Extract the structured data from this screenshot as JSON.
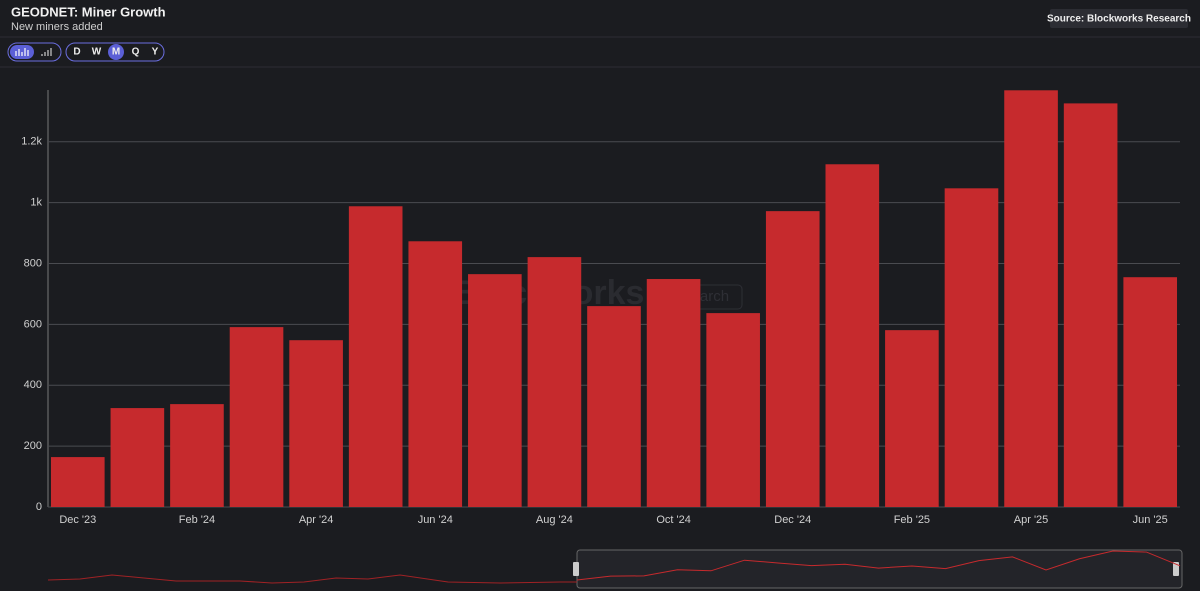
{
  "chart_data": {
    "type": "bar",
    "title": "GEODNET: Miner Growth",
    "subtitle": "New miners added",
    "source": "Source: Blockworks Research",
    "watermark": "Blockworks",
    "watermark_badge": "Research",
    "intervals": [
      "D",
      "W",
      "M",
      "Q",
      "Y"
    ],
    "active_interval": "M",
    "categories": [
      "Dec '23",
      null,
      "Feb '24",
      null,
      "Apr '24",
      null,
      "Jun '24",
      null,
      "Aug '24",
      null,
      "Oct '24",
      null,
      "Dec '24",
      null,
      "Feb '25",
      null,
      "Apr '25",
      null,
      "Jun '25"
    ],
    "values": [
      164,
      325,
      338,
      591,
      548,
      988,
      873,
      765,
      821,
      660,
      749,
      637,
      972,
      1126,
      581,
      1047,
      1369,
      1326,
      755
    ],
    "color": "#c62a2d",
    "ylim": [
      0,
      1370
    ],
    "yticks": [
      0,
      200,
      400,
      600,
      800,
      {
        "value": 1000,
        "label": "1k"
      },
      {
        "value": 1200,
        "label": "1.2k"
      }
    ],
    "grid": true
  }
}
